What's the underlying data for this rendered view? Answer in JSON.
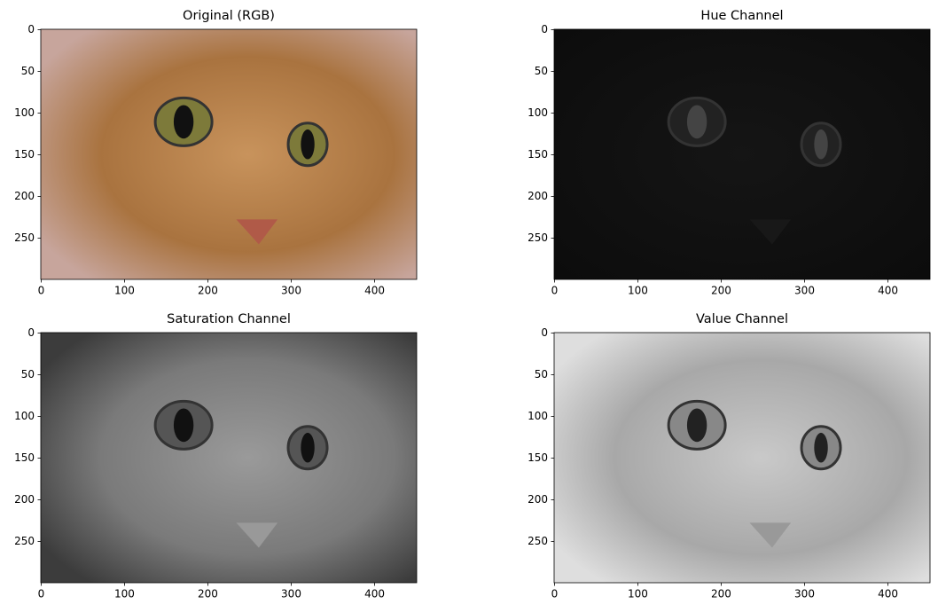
{
  "chart_data": [
    {
      "type": "image",
      "title": "Original (RGB)",
      "xlim": [
        -0.5,
        450.5
      ],
      "ylim": [
        299.5,
        -0.5
      ],
      "xticks": [
        0,
        100,
        200,
        300,
        400
      ],
      "yticks": [
        0,
        50,
        100,
        150,
        200,
        250
      ]
    },
    {
      "type": "image",
      "title": "Hue Channel",
      "xlim": [
        -0.5,
        450.5
      ],
      "ylim": [
        299.5,
        -0.5
      ],
      "xticks": [
        0,
        100,
        200,
        300,
        400
      ],
      "yticks": [
        0,
        50,
        100,
        150,
        200,
        250
      ]
    },
    {
      "type": "image",
      "title": "Saturation Channel",
      "xlim": [
        -0.5,
        450.5
      ],
      "ylim": [
        299.5,
        -0.5
      ],
      "xticks": [
        0,
        100,
        200,
        300,
        400
      ],
      "yticks": [
        0,
        50,
        100,
        150,
        200,
        250
      ]
    },
    {
      "type": "image",
      "title": "Value Channel",
      "xlim": [
        -0.5,
        450.5
      ],
      "ylim": [
        299.5,
        -0.5
      ],
      "xticks": [
        0,
        100,
        200,
        300,
        400
      ],
      "yticks": [
        0,
        50,
        100,
        150,
        200,
        250
      ]
    }
  ]
}
